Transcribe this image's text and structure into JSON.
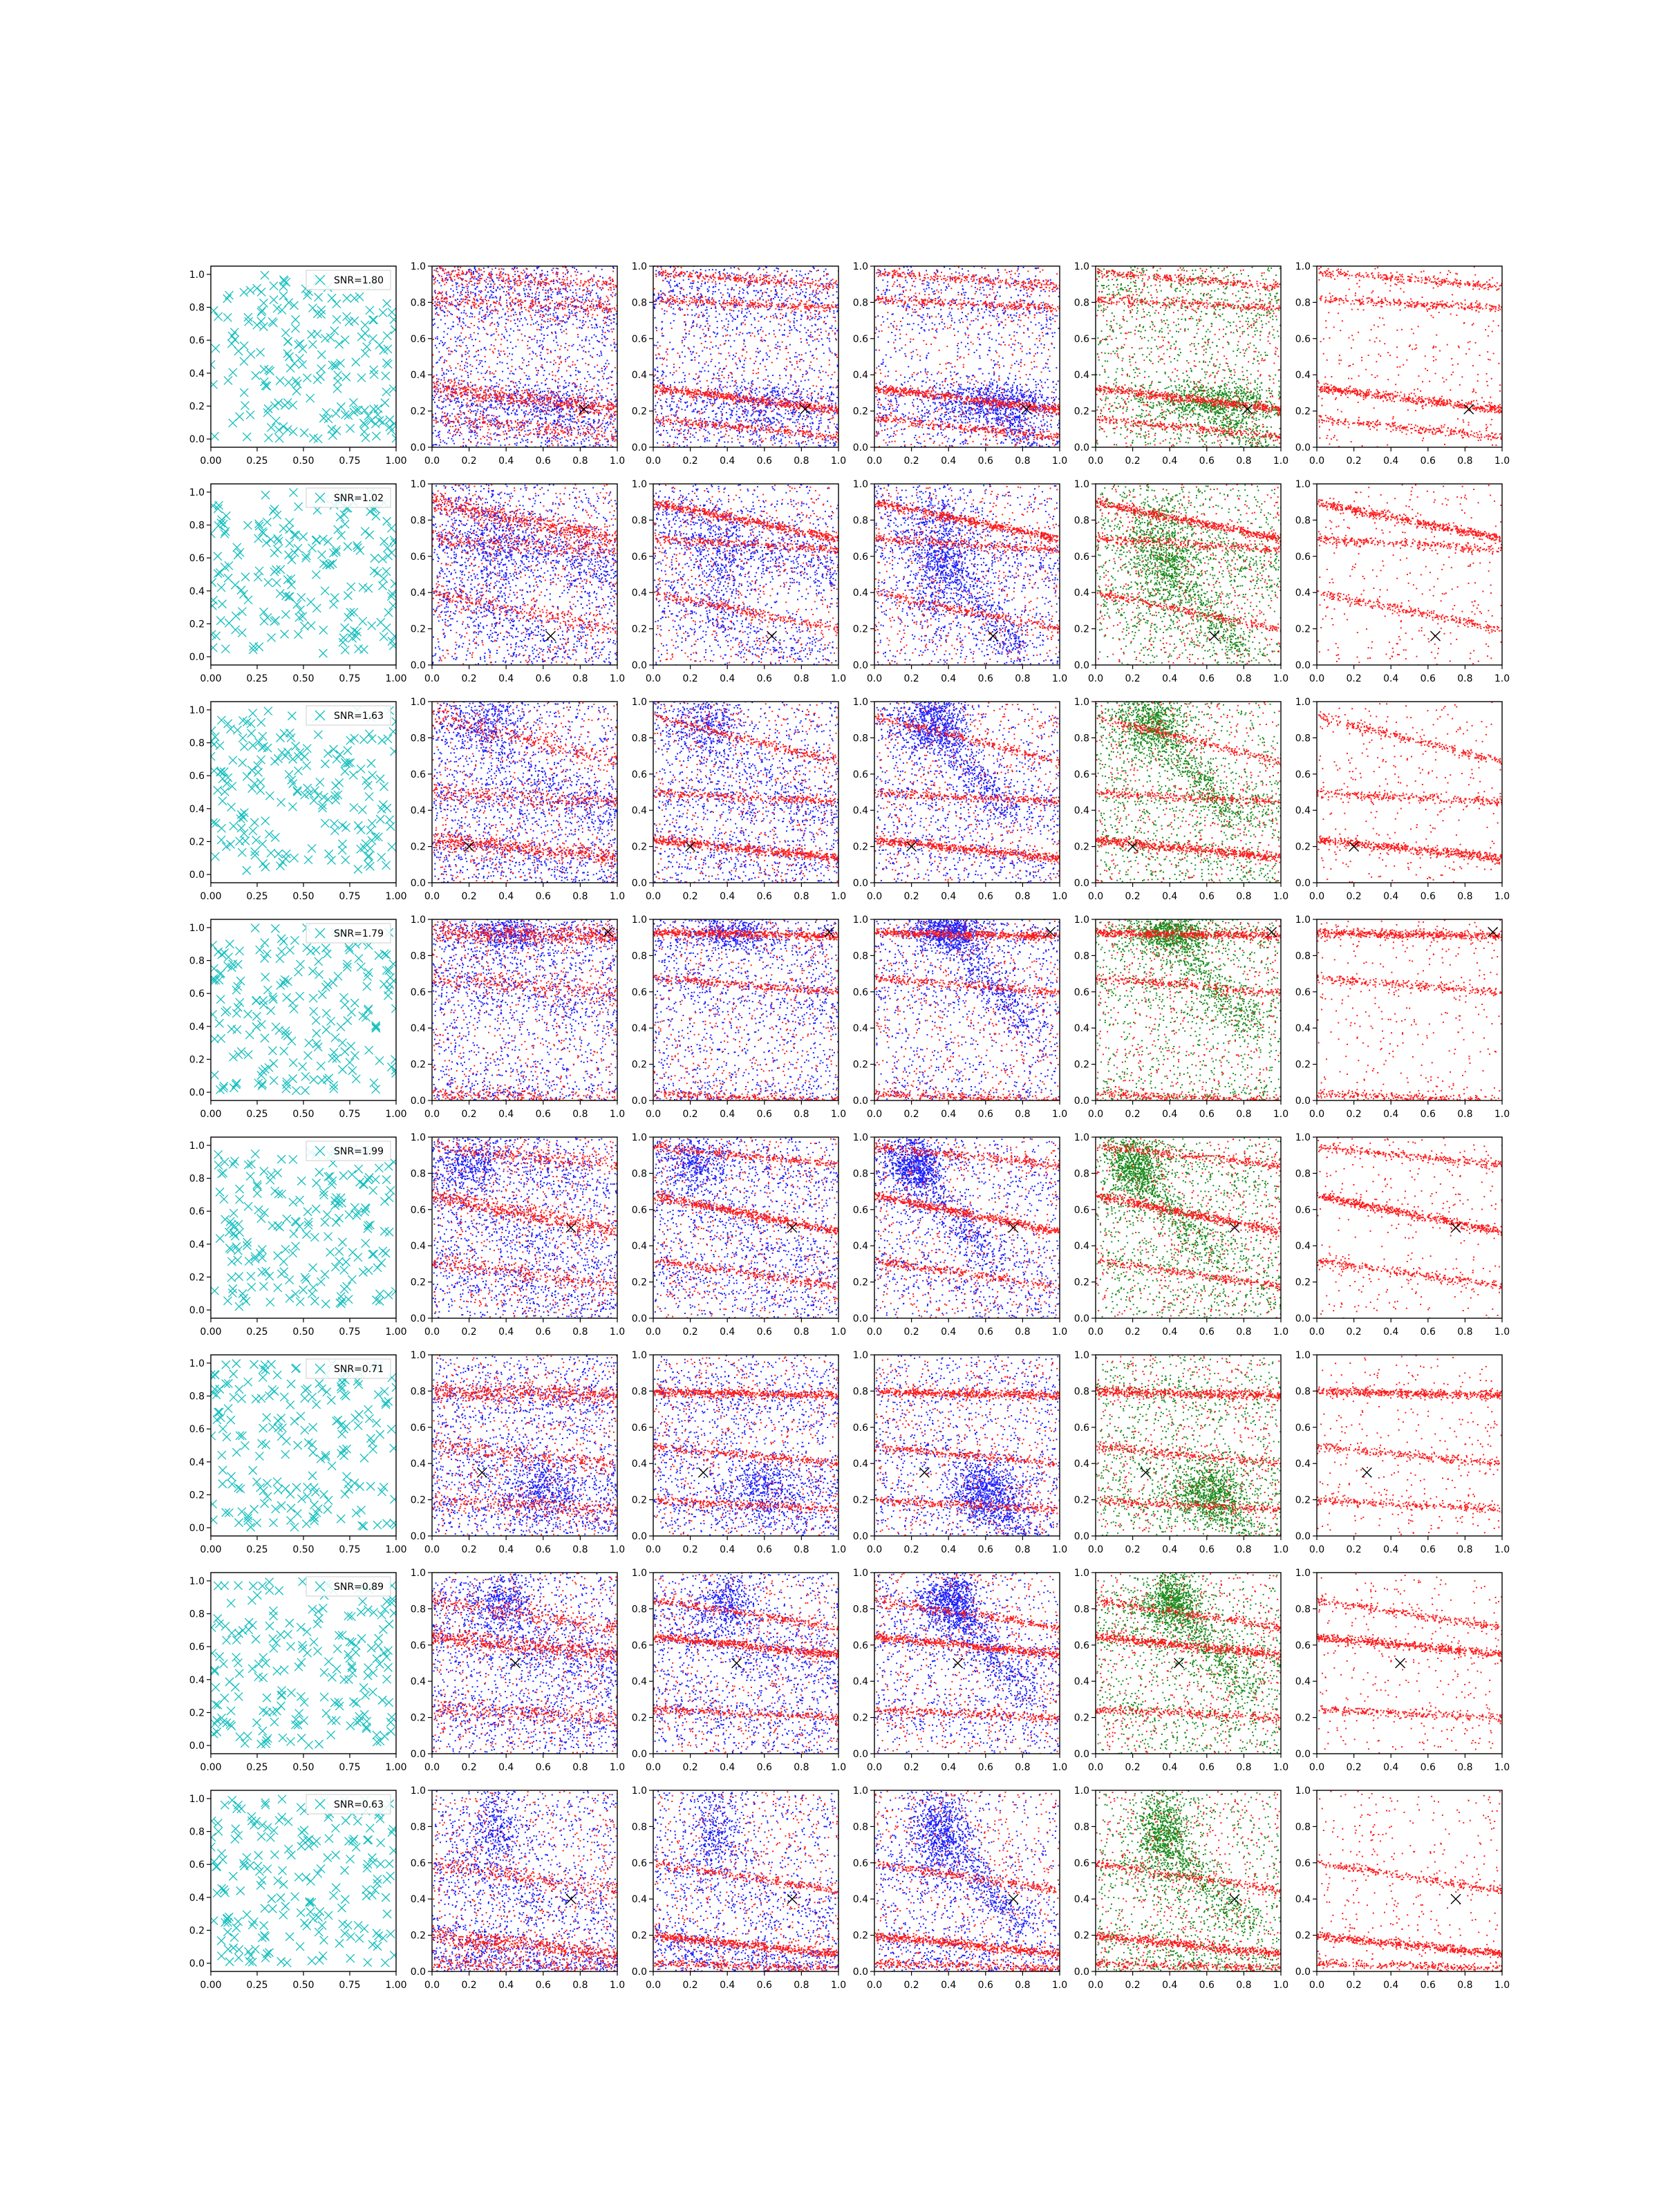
{
  "figure": {
    "rows": 8,
    "columns": 6,
    "colors": {
      "cyan": "#17bfbf",
      "blue": "#1f1fff",
      "red": "#ff1a1a",
      "green": "#1a8a1a",
      "marker": "#000000",
      "axis": "#000000"
    }
  },
  "chart_data": {
    "type": "scatter",
    "description_of_grid": "Column 1: cyan x-marker scatter with SNR legend. Columns 2-4: red/blue point clouds. Column 5: red/green point clouds. Column 6: red points only. Black x marker per row.",
    "axes": {
      "col1": {
        "xlim": [
          0,
          1
        ],
        "ylim": [
          -0.05,
          1.05
        ],
        "xticks": [
          "0.00",
          "0.25",
          "0.50",
          "0.75",
          "1.00"
        ],
        "yticks": [
          "0.0",
          "0.2",
          "0.4",
          "0.6",
          "0.8",
          "1.0"
        ]
      },
      "other": {
        "xlim": [
          0,
          1
        ],
        "ylim": [
          0,
          1
        ],
        "xticks": [
          "0.0",
          "0.2",
          "0.4",
          "0.6",
          "0.8",
          "1.0"
        ],
        "yticks": [
          "0.0",
          "0.2",
          "0.4",
          "0.6",
          "0.8",
          "1.0"
        ]
      }
    },
    "rows": [
      {
        "legend": "SNR=1.80",
        "marker": [
          0.82,
          0.21
        ],
        "red_lines": [
          [
            0.33,
            -0.12
          ],
          [
            0.16,
            -0.1
          ],
          [
            0.97,
            -0.08
          ],
          [
            0.82,
            -0.05
          ]
        ],
        "blue_blobs": [
          [
            0.65,
            0.25,
            0.2,
            0.06
          ]
        ]
      },
      {
        "legend": "SNR=1.02",
        "marker": [
          0.64,
          0.16
        ],
        "red_lines": [
          [
            0.9,
            -0.2
          ],
          [
            0.7,
            -0.06
          ],
          [
            0.4,
            -0.2
          ]
        ],
        "blue_blobs": [
          [
            0.35,
            0.62,
            0.1,
            0.2
          ]
        ]
      },
      {
        "legend": "SNR=1.63",
        "marker": [
          0.2,
          0.2
        ],
        "red_lines": [
          [
            0.24,
            -0.1
          ],
          [
            0.5,
            -0.05
          ],
          [
            0.92,
            -0.25
          ]
        ],
        "blue_blobs": [
          [
            0.3,
            0.9,
            0.1,
            0.1
          ]
        ]
      },
      {
        "legend": "SNR=1.79",
        "marker": [
          0.95,
          0.93
        ],
        "red_lines": [
          [
            0.93,
            -0.02
          ],
          [
            0.68,
            -0.08
          ],
          [
            0.04,
            -0.04
          ]
        ],
        "blue_blobs": [
          [
            0.4,
            0.93,
            0.1,
            0.05
          ]
        ]
      },
      {
        "legend": "SNR=1.99",
        "marker": [
          0.75,
          0.5
        ],
        "red_lines": [
          [
            0.68,
            -0.2
          ],
          [
            0.32,
            -0.14
          ],
          [
            0.95,
            -0.1
          ]
        ],
        "blue_blobs": [
          [
            0.2,
            0.85,
            0.08,
            0.08
          ]
        ]
      },
      {
        "legend": "SNR=0.71",
        "marker": [
          0.27,
          0.35
        ],
        "red_lines": [
          [
            0.8,
            -0.02
          ],
          [
            0.5,
            -0.1
          ],
          [
            0.2,
            -0.05
          ]
        ],
        "blue_blobs": [
          [
            0.6,
            0.25,
            0.1,
            0.08
          ]
        ]
      },
      {
        "legend": "SNR=0.89",
        "marker": [
          0.45,
          0.5
        ],
        "red_lines": [
          [
            0.65,
            -0.1
          ],
          [
            0.25,
            -0.05
          ],
          [
            0.85,
            -0.15
          ]
        ],
        "blue_blobs": [
          [
            0.4,
            0.85,
            0.08,
            0.08
          ]
        ]
      },
      {
        "legend": "SNR=0.63",
        "marker": [
          0.75,
          0.4
        ],
        "red_lines": [
          [
            0.2,
            -0.1
          ],
          [
            0.6,
            -0.15
          ],
          [
            0.05,
            -0.03
          ]
        ],
        "blue_blobs": [
          [
            0.35,
            0.78,
            0.08,
            0.12
          ]
        ]
      }
    ]
  }
}
